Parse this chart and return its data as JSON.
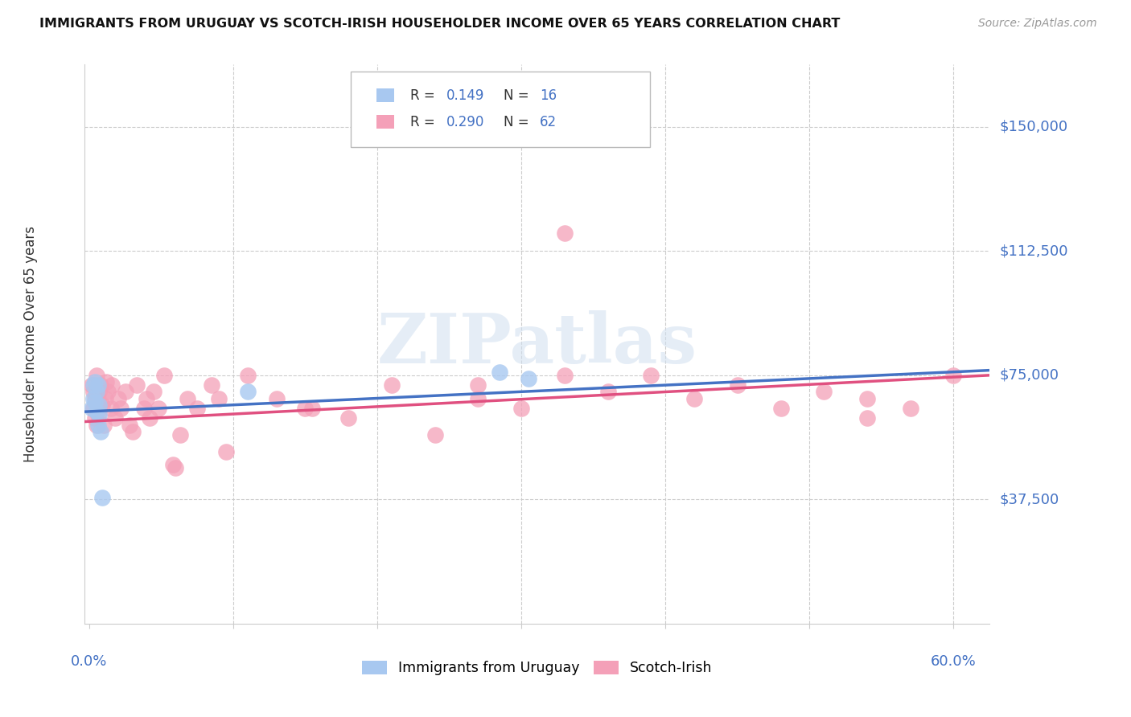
{
  "title": "IMMIGRANTS FROM URUGUAY VS SCOTCH-IRISH HOUSEHOLDER INCOME OVER 65 YEARS CORRELATION CHART",
  "source": "Source: ZipAtlas.com",
  "ylabel": "Householder Income Over 65 years",
  "ytick_labels": [
    "$37,500",
    "$75,000",
    "$112,500",
    "$150,000"
  ],
  "ytick_values": [
    37500,
    75000,
    112500,
    150000
  ],
  "ymin": 0,
  "ymax": 168750,
  "xmin": -0.003,
  "xmax": 0.625,
  "legend1_R": "0.149",
  "legend1_N": "16",
  "legend2_R": "0.290",
  "legend2_N": "62",
  "color_uruguay": "#a8c8f0",
  "color_scotch": "#f4a0b8",
  "color_line_uruguay": "#4472c4",
  "color_line_scotch": "#e05080",
  "color_blue": "#4472c4",
  "color_text": "#333333",
  "color_grid": "#cccccc",
  "watermark_text": "ZIPatlas",
  "uru_x": [
    0.002,
    0.003,
    0.003,
    0.004,
    0.004,
    0.005,
    0.005,
    0.006,
    0.006,
    0.007,
    0.007,
    0.008,
    0.009,
    0.11,
    0.285,
    0.305
  ],
  "uru_y": [
    65000,
    72000,
    68000,
    73000,
    67000,
    70000,
    64000,
    72000,
    60000,
    66000,
    63000,
    58000,
    38000,
    70000,
    76000,
    74000
  ],
  "scotch_x": [
    0.002,
    0.003,
    0.003,
    0.004,
    0.004,
    0.005,
    0.005,
    0.006,
    0.006,
    0.007,
    0.007,
    0.008,
    0.009,
    0.01,
    0.011,
    0.012,
    0.013,
    0.015,
    0.016,
    0.018,
    0.02,
    0.022,
    0.025,
    0.028,
    0.03,
    0.033,
    0.038,
    0.04,
    0.042,
    0.045,
    0.048,
    0.052,
    0.058,
    0.063,
    0.068,
    0.075,
    0.085,
    0.095,
    0.11,
    0.13,
    0.155,
    0.18,
    0.21,
    0.24,
    0.27,
    0.3,
    0.33,
    0.36,
    0.39,
    0.42,
    0.45,
    0.48,
    0.51,
    0.54,
    0.57,
    0.6,
    0.33,
    0.27,
    0.54,
    0.15,
    0.09,
    0.06
  ],
  "scotch_y": [
    72000,
    70000,
    65000,
    68000,
    62000,
    75000,
    60000,
    68000,
    63000,
    65000,
    70000,
    72000,
    66000,
    60000,
    68000,
    73000,
    70000,
    65000,
    72000,
    62000,
    68000,
    65000,
    70000,
    60000,
    58000,
    72000,
    65000,
    68000,
    62000,
    70000,
    65000,
    75000,
    48000,
    57000,
    68000,
    65000,
    72000,
    52000,
    75000,
    68000,
    65000,
    62000,
    72000,
    57000,
    68000,
    65000,
    118000,
    70000,
    75000,
    68000,
    72000,
    65000,
    70000,
    68000,
    65000,
    75000,
    75000,
    72000,
    62000,
    65000,
    68000,
    47000
  ]
}
